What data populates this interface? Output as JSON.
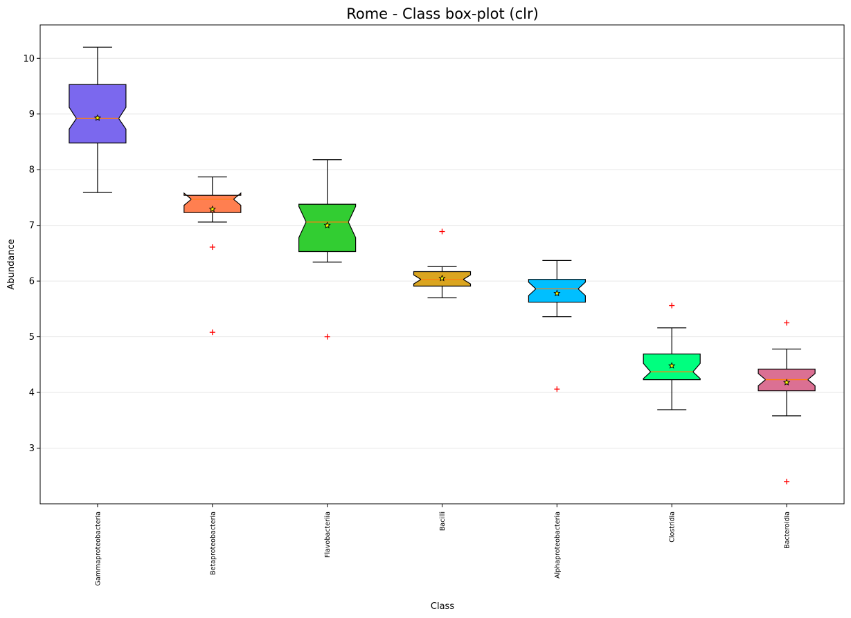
{
  "chart_data": {
    "type": "box",
    "title": "Rome - Class box-plot (clr)",
    "xlabel": "Class",
    "ylabel": "Abundance",
    "ylim": [
      2.0,
      10.6
    ],
    "yticks": [
      3,
      4,
      5,
      6,
      7,
      8,
      9,
      10
    ],
    "grid": "horizontal",
    "notched": true,
    "mean_marker": "star",
    "outlier_marker": "+",
    "outlier_color": "#ff0000",
    "median_color": "#ff7f0e",
    "categories": [
      "Gammaproteobacteria",
      "Betaproteobacteria",
      "Flavobacteriia",
      "Bacilli",
      "Alphaproteobacteria",
      "Clostridia",
      "Bacteroidia"
    ],
    "boxes": [
      {
        "label": "Gammaproteobacteria",
        "color": "#7b68ee",
        "whisker_low": 7.59,
        "q1": 8.48,
        "median": 8.92,
        "q3": 9.53,
        "whisker_high": 10.2,
        "notch_low": 8.73,
        "notch_high": 9.12,
        "mean": 8.93,
        "outliers": []
      },
      {
        "label": "Betaproteobacteria",
        "color": "#ff7f50",
        "whisker_low": 7.06,
        "q1": 7.23,
        "median": 7.47,
        "q3": 7.54,
        "whisker_high": 7.87,
        "notch_low": 7.36,
        "notch_high": 7.58,
        "mean": 7.29,
        "outliers": [
          6.61,
          5.08
        ]
      },
      {
        "label": "Flavobacteriia",
        "color": "#32cd32",
        "whisker_low": 6.34,
        "q1": 6.53,
        "median": 7.06,
        "q3": 7.38,
        "whisker_high": 8.18,
        "notch_low": 6.78,
        "notch_high": 7.34,
        "mean": 7.0,
        "outliers": [
          5.0
        ]
      },
      {
        "label": "Bacilli",
        "color": "#daa520",
        "whisker_low": 5.7,
        "q1": 5.91,
        "median": 6.03,
        "q3": 6.17,
        "whisker_high": 6.26,
        "notch_low": 5.95,
        "notch_high": 6.11,
        "mean": 6.05,
        "outliers": [
          6.89
        ]
      },
      {
        "label": "Alphaproteobacteria",
        "color": "#00bfff",
        "whisker_low": 5.36,
        "q1": 5.62,
        "median": 5.86,
        "q3": 6.03,
        "whisker_high": 6.37,
        "notch_low": 5.74,
        "notch_high": 5.98,
        "mean": 5.78,
        "outliers": [
          4.06
        ]
      },
      {
        "label": "Clostridia",
        "color": "#00ff7f",
        "whisker_low": 3.69,
        "q1": 4.23,
        "median": 4.37,
        "q3": 4.69,
        "whisker_high": 5.16,
        "notch_low": 4.25,
        "notch_high": 4.52,
        "mean": 4.48,
        "outliers": [
          5.56
        ]
      },
      {
        "label": "Bacteroidia",
        "color": "#db7093",
        "whisker_low": 3.58,
        "q1": 4.03,
        "median": 4.23,
        "q3": 4.42,
        "whisker_high": 4.78,
        "notch_low": 4.12,
        "notch_high": 4.34,
        "mean": 4.18,
        "outliers": [
          5.25,
          2.4
        ]
      }
    ]
  }
}
